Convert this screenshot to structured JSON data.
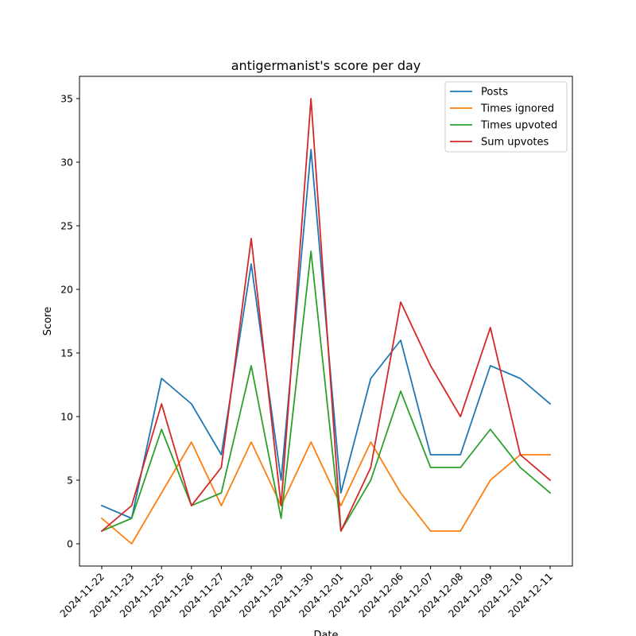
{
  "chart_data": {
    "type": "line",
    "title": "antigermanist's score per day",
    "xlabel": "Date",
    "ylabel": "Score",
    "ylim": [
      -1.75,
      36.75
    ],
    "yticks": [
      0,
      5,
      10,
      15,
      20,
      25,
      30,
      35
    ],
    "x": [
      "2024-11-22",
      "2024-11-23",
      "2024-11-25",
      "2024-11-26",
      "2024-11-27",
      "2024-11-28",
      "2024-11-29",
      "2024-11-30",
      "2024-12-01",
      "2024-12-02",
      "2024-12-06",
      "2024-12-07",
      "2024-12-08",
      "2024-12-09",
      "2024-12-10",
      "2024-12-11"
    ],
    "legend": "top-right",
    "grid": false,
    "series": [
      {
        "name": "Posts",
        "color": "#1f77b4",
        "values": [
          3,
          2,
          13,
          11,
          7,
          22,
          5,
          31,
          4,
          13,
          16,
          7,
          7,
          14,
          13,
          11
        ]
      },
      {
        "name": "Times ignored",
        "color": "#ff7f0e",
        "values": [
          2,
          0,
          4,
          8,
          3,
          8,
          3,
          8,
          3,
          8,
          4,
          1,
          1,
          5,
          7,
          7
        ]
      },
      {
        "name": "Times upvoted",
        "color": "#2ca02c",
        "values": [
          1,
          2,
          9,
          3,
          4,
          14,
          2,
          23,
          1,
          5,
          12,
          6,
          6,
          9,
          6,
          4
        ]
      },
      {
        "name": "Sum upvotes",
        "color": "#d62728",
        "values": [
          1,
          3,
          11,
          3,
          6,
          24,
          3,
          35,
          1,
          6,
          19,
          14,
          10,
          17,
          7,
          5
        ]
      }
    ]
  }
}
